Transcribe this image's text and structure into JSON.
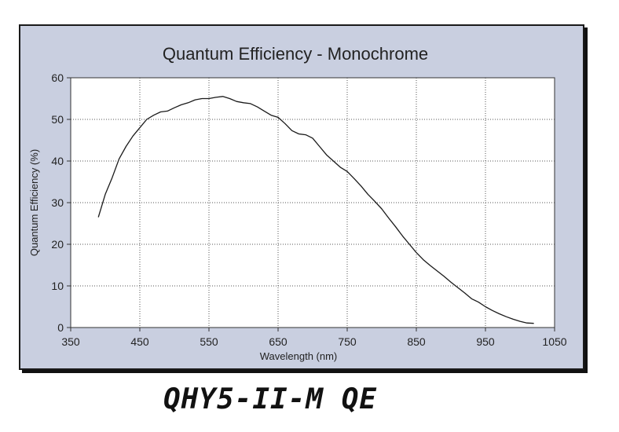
{
  "chart_data": {
    "type": "line",
    "title": "Quantum Efficiency - Monochrome",
    "xlabel": "Wavelength (nm)",
    "ylabel": "Quantum Efficiency (%)",
    "xlim": [
      350,
      1050
    ],
    "ylim": [
      0,
      60
    ],
    "xticks": [
      350,
      450,
      550,
      650,
      750,
      850,
      950,
      1050
    ],
    "yticks": [
      0,
      10,
      20,
      30,
      40,
      50,
      60
    ],
    "grid": true,
    "series": [
      {
        "color": "#1a1a1a",
        "x": [
          390,
          400,
          410,
          420,
          430,
          440,
          450,
          460,
          470,
          480,
          490,
          500,
          510,
          520,
          530,
          540,
          550,
          560,
          570,
          580,
          590,
          600,
          610,
          620,
          630,
          640,
          650,
          660,
          670,
          680,
          690,
          700,
          710,
          720,
          730,
          740,
          750,
          760,
          770,
          780,
          790,
          800,
          810,
          820,
          830,
          840,
          850,
          860,
          870,
          880,
          890,
          900,
          910,
          920,
          930,
          940,
          950,
          960,
          970,
          980,
          990,
          1000,
          1010,
          1020
        ],
        "y": [
          26.5,
          32,
          36,
          40.5,
          43.5,
          46,
          48,
          50,
          51,
          51.8,
          52,
          52.8,
          53.5,
          54,
          54.7,
          55,
          55,
          55.3,
          55.5,
          55,
          54.3,
          54,
          53.8,
          53,
          52,
          51,
          50.5,
          49,
          47.3,
          46.5,
          46.3,
          45.5,
          43.5,
          41.5,
          40,
          38.5,
          37.5,
          35.8,
          34,
          32,
          30.3,
          28.5,
          26.3,
          24.2,
          22,
          20,
          18,
          16.3,
          14.9,
          13.6,
          12.3,
          10.9,
          9.6,
          8.3,
          6.9,
          6.1,
          5,
          4.1,
          3.3,
          2.6,
          2,
          1.5,
          1.1,
          1
        ]
      }
    ]
  },
  "caption": "QHY5-II-M QE",
  "colors": {
    "panel_bg": "#c9cfe0",
    "plot_bg": "#ffffff",
    "grid": "#333333",
    "line": "#1a1a1a",
    "text": "#222222"
  }
}
